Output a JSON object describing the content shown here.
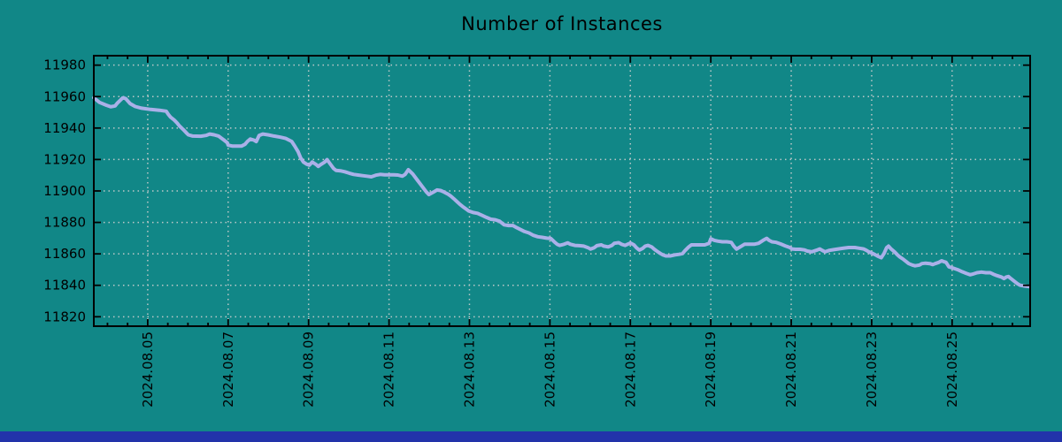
{
  "window": {
    "background": "#118787",
    "bottom_bar_color": "#2233aa"
  },
  "chart_data": {
    "type": "line",
    "title": "Number of Instances",
    "xlabel": "",
    "ylabel": "",
    "grid": "dotted",
    "legend": "none",
    "xlim": [
      3.66,
      26.94
    ],
    "ylim": [
      11814,
      11986
    ],
    "y_ticks": [
      11820,
      11840,
      11860,
      11880,
      11900,
      11920,
      11940,
      11960,
      11980
    ],
    "x_tick_days": [
      5,
      7,
      9,
      11,
      13,
      15,
      17,
      19,
      21,
      23,
      25
    ],
    "x_tick_labels": [
      "2024.08.05",
      "2024.08.07",
      "2024.08.09",
      "2024.08.11",
      "2024.08.13",
      "2024.08.15",
      "2024.08.17",
      "2024.08.19",
      "2024.08.21",
      "2024.08.23",
      "2024.08.25"
    ],
    "minor_x_tick_step": 0.5,
    "colors": {
      "line": "#aab0e8",
      "grid": "#bcc8c8",
      "axis": "#000000",
      "text": "#000000"
    },
    "series": [
      {
        "name": "instances",
        "x": [
          3.66,
          3.8,
          3.97,
          4.08,
          4.19,
          4.25,
          4.38,
          4.45,
          4.56,
          4.69,
          4.85,
          5.07,
          5.29,
          5.46,
          5.51,
          5.57,
          5.66,
          5.73,
          5.79,
          5.88,
          5.95,
          6.01,
          6.12,
          6.32,
          6.45,
          6.54,
          6.65,
          6.76,
          6.82,
          6.89,
          6.98,
          7.0,
          7.11,
          7.33,
          7.42,
          7.48,
          7.55,
          7.64,
          7.7,
          7.77,
          7.86,
          7.99,
          8.14,
          8.3,
          8.43,
          8.58,
          8.65,
          8.74,
          8.8,
          8.87,
          8.96,
          9.02,
          9.09,
          9.18,
          9.24,
          9.31,
          9.4,
          9.46,
          9.53,
          9.62,
          9.68,
          9.79,
          9.9,
          10.01,
          10.12,
          10.23,
          10.34,
          10.45,
          10.56,
          10.67,
          10.78,
          10.89,
          11.11,
          11.22,
          11.33,
          11.4,
          11.48,
          11.59,
          11.7,
          11.81,
          11.92,
          11.99,
          12.1,
          12.19,
          12.28,
          12.36,
          12.47,
          12.54,
          12.61,
          12.69,
          12.76,
          12.83,
          12.91,
          12.98,
          13.09,
          13.2,
          13.31,
          13.42,
          13.53,
          13.64,
          13.75,
          13.86,
          13.97,
          14.08,
          14.15,
          14.26,
          14.37,
          14.48,
          14.59,
          14.7,
          14.81,
          14.92,
          15.02,
          15.11,
          15.18,
          15.24,
          15.35,
          15.44,
          15.51,
          15.62,
          15.73,
          15.84,
          15.95,
          16.01,
          16.1,
          16.17,
          16.28,
          16.34,
          16.45,
          16.54,
          16.6,
          16.71,
          16.78,
          16.87,
          16.93,
          17.0,
          17.09,
          17.15,
          17.22,
          17.31,
          17.37,
          17.44,
          17.53,
          17.59,
          17.66,
          17.75,
          17.81,
          17.88,
          17.99,
          18.1,
          18.21,
          18.3,
          18.36,
          18.45,
          18.52,
          18.69,
          18.85,
          18.96,
          19.0,
          19.09,
          19.18,
          19.29,
          19.4,
          19.51,
          19.57,
          19.64,
          19.73,
          19.84,
          19.95,
          20.08,
          20.19,
          20.3,
          20.39,
          20.45,
          20.52,
          20.63,
          20.74,
          20.85,
          20.96,
          21.02,
          21.11,
          21.22,
          21.33,
          21.4,
          21.51,
          21.62,
          21.71,
          21.77,
          21.84,
          21.95,
          22.06,
          22.17,
          22.28,
          22.43,
          22.58,
          22.69,
          22.8,
          22.87,
          22.93,
          23.02,
          23.09,
          23.15,
          23.24,
          23.31,
          23.37,
          23.42,
          23.48,
          23.57,
          23.64,
          23.7,
          23.79,
          23.86,
          23.92,
          24.01,
          24.08,
          24.19,
          24.25,
          24.34,
          24.45,
          24.52,
          24.58,
          24.67,
          24.74,
          24.81,
          24.85,
          24.92,
          25.03,
          25.14,
          25.25,
          25.36,
          25.45,
          25.51,
          25.62,
          25.73,
          25.84,
          25.95,
          26.02,
          26.11,
          26.22,
          26.29,
          26.35,
          26.4,
          26.46,
          26.55,
          26.62,
          26.69,
          26.8,
          26.91
        ],
        "y": [
          11959.3,
          11956.3,
          11954.5,
          11953.5,
          11954.1,
          11956.0,
          11959.2,
          11958.8,
          11955.6,
          11953.7,
          11952.6,
          11951.8,
          11951.3,
          11950.7,
          11948.8,
          11946.9,
          11945.1,
          11943.2,
          11941.3,
          11939.1,
          11937.2,
          11935.7,
          11934.9,
          11934.8,
          11935.3,
          11936.2,
          11935.7,
          11934.9,
          11933.8,
          11932.5,
          11930.6,
          11929.1,
          11928.5,
          11928.5,
          11929.7,
          11931.5,
          11933.0,
          11932.3,
          11931.4,
          11935.3,
          11936.2,
          11935.7,
          11934.9,
          11934.2,
          11933.4,
          11931.5,
          11928.7,
          11924.9,
          11921.2,
          11918.4,
          11916.9,
          11916.4,
          11918.4,
          11916.9,
          11915.6,
          11916.9,
          11918.4,
          11919.9,
          11917.4,
          11914.3,
          11913.1,
          11912.8,
          11912.2,
          11911.3,
          11910.5,
          11910.1,
          11909.7,
          11909.4,
          11909.0,
          11910.0,
          11910.5,
          11910.3,
          11910.3,
          11910.1,
          11909.4,
          11910.5,
          11913.5,
          11910.8,
          11907.0,
          11903.3,
          11899.6,
          11897.7,
          11899.2,
          11900.6,
          11900.3,
          11899.4,
          11897.9,
          11896.6,
          11895.1,
          11893.2,
          11891.5,
          11890.1,
          11888.6,
          11887.3,
          11886.3,
          11885.8,
          11884.5,
          11883.2,
          11882.0,
          11881.7,
          11880.7,
          11878.5,
          11878.0,
          11878.0,
          11877.0,
          11875.6,
          11874.2,
          11873.3,
          11871.8,
          11870.9,
          11870.5,
          11870.0,
          11869.8,
          11867.6,
          11866.1,
          11865.4,
          11866.1,
          11867.0,
          11866.1,
          11865.4,
          11865.2,
          11864.9,
          11863.9,
          11863.0,
          11863.9,
          11865.2,
          11865.7,
          11864.9,
          11864.4,
          11865.4,
          11866.7,
          11867.1,
          11866.1,
          11865.4,
          11866.1,
          11866.9,
          11865.7,
          11863.9,
          11862.4,
          11863.5,
          11864.9,
          11865.4,
          11864.4,
          11863.0,
          11861.7,
          11860.2,
          11859.3,
          11858.7,
          11858.7,
          11859.3,
          11859.7,
          11860.2,
          11862.1,
          11864.4,
          11865.7,
          11865.7,
          11865.7,
          11866.7,
          11869.6,
          11868.6,
          11868.1,
          11867.7,
          11867.7,
          11867.3,
          11864.9,
          11863.0,
          11864.4,
          11866.1,
          11866.1,
          11866.1,
          11866.7,
          11868.6,
          11869.9,
          11868.6,
          11867.7,
          11867.3,
          11866.3,
          11865.1,
          11864.1,
          11863.1,
          11862.9,
          11862.9,
          11862.5,
          11861.8,
          11861.3,
          11862.2,
          11863.1,
          11862.2,
          11861.3,
          11862.2,
          11862.7,
          11863.1,
          11863.5,
          11864.0,
          11864.0,
          11863.6,
          11863.1,
          11862.2,
          11861.3,
          11860.3,
          11859.4,
          11858.5,
          11857.5,
          11860.3,
          11863.9,
          11864.9,
          11863.1,
          11861.3,
          11859.4,
          11858.0,
          11856.5,
          11855.1,
          11853.8,
          11852.9,
          11852.4,
          11852.9,
          11853.8,
          11854.1,
          11853.8,
          11853.2,
          11853.8,
          11854.6,
          11855.6,
          11854.9,
          11854.6,
          11851.8,
          11850.9,
          11849.9,
          11848.6,
          11847.5,
          11846.7,
          11847.1,
          11848.0,
          11848.4,
          11848.0,
          11848.0,
          11847.1,
          11846.2,
          11845.3,
          11844.3,
          11845.3,
          11845.6,
          11844.3,
          11842.5,
          11841.1,
          11840.0,
          11839.6,
          11839.2
        ]
      }
    ]
  }
}
